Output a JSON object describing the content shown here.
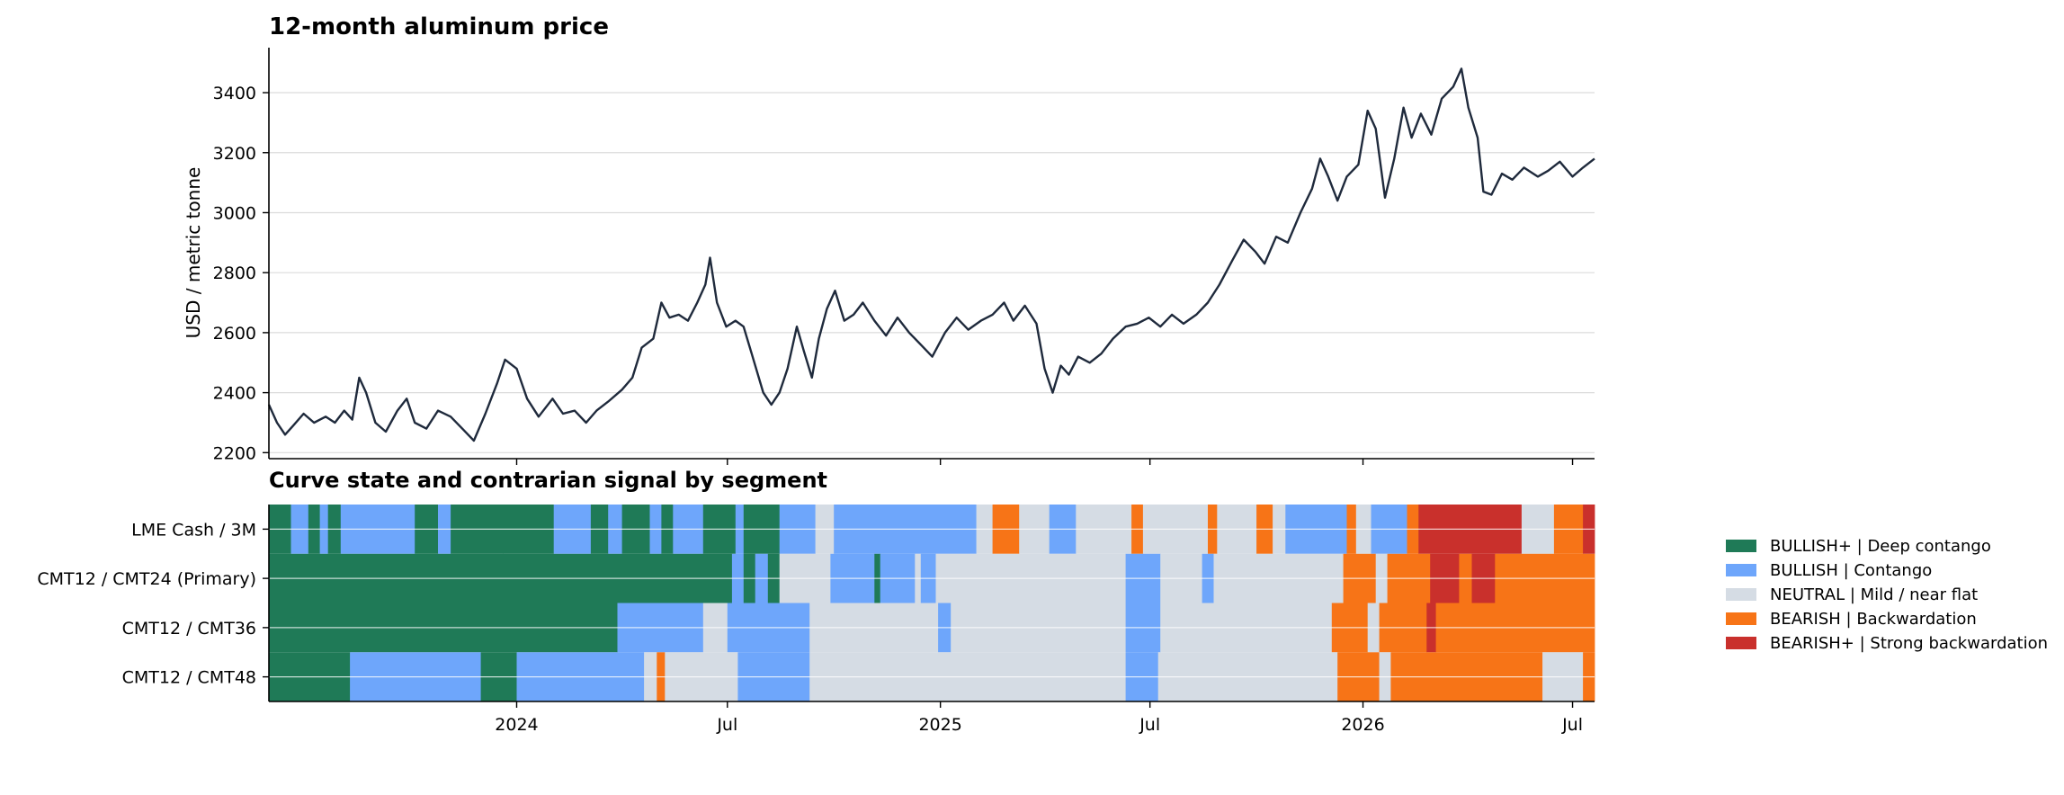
{
  "chart_data": [
    {
      "type": "line",
      "title": "12-month aluminum price",
      "xlabel": "",
      "ylabel": "USD / metric tonne",
      "ylim": [
        2180,
        3550
      ],
      "yticks": [
        2200,
        2400,
        2600,
        2800,
        3000,
        3200,
        3400
      ],
      "xrange": [
        "2023-06-01",
        "2026-07-20"
      ],
      "grid": "horizontal",
      "line_color": "#1f2a3c",
      "series": [
        {
          "points": [
            [
              "2023-06-01",
              2360
            ],
            [
              "2023-06-08",
              2300
            ],
            [
              "2023-06-15",
              2260
            ],
            [
              "2023-06-22",
              2290
            ],
            [
              "2023-07-01",
              2330
            ],
            [
              "2023-07-10",
              2300
            ],
            [
              "2023-07-20",
              2320
            ],
            [
              "2023-07-28",
              2300
            ],
            [
              "2023-08-05",
              2340
            ],
            [
              "2023-08-12",
              2310
            ],
            [
              "2023-08-18",
              2450
            ],
            [
              "2023-08-24",
              2400
            ],
            [
              "2023-09-01",
              2300
            ],
            [
              "2023-09-10",
              2270
            ],
            [
              "2023-09-20",
              2340
            ],
            [
              "2023-09-28",
              2380
            ],
            [
              "2023-10-05",
              2300
            ],
            [
              "2023-10-15",
              2280
            ],
            [
              "2023-10-25",
              2340
            ],
            [
              "2023-11-05",
              2320
            ],
            [
              "2023-11-15",
              2280
            ],
            [
              "2023-11-25",
              2240
            ],
            [
              "2023-12-05",
              2330
            ],
            [
              "2023-12-15",
              2430
            ],
            [
              "2023-12-22",
              2510
            ],
            [
              "2024-01-01",
              2480
            ],
            [
              "2024-01-10",
              2380
            ],
            [
              "2024-01-20",
              2320
            ],
            [
              "2024-02-01",
              2380
            ],
            [
              "2024-02-10",
              2330
            ],
            [
              "2024-02-20",
              2340
            ],
            [
              "2024-03-01",
              2300
            ],
            [
              "2024-03-10",
              2340
            ],
            [
              "2024-03-20",
              2370
            ],
            [
              "2024-04-01",
              2410
            ],
            [
              "2024-04-10",
              2450
            ],
            [
              "2024-04-18",
              2550
            ],
            [
              "2024-04-28",
              2580
            ],
            [
              "2024-05-05",
              2700
            ],
            [
              "2024-05-12",
              2650
            ],
            [
              "2024-05-20",
              2660
            ],
            [
              "2024-05-28",
              2640
            ],
            [
              "2024-06-05",
              2700
            ],
            [
              "2024-06-12",
              2760
            ],
            [
              "2024-06-16",
              2850
            ],
            [
              "2024-06-22",
              2700
            ],
            [
              "2024-06-30",
              2620
            ],
            [
              "2024-07-08",
              2640
            ],
            [
              "2024-07-15",
              2620
            ],
            [
              "2024-07-22",
              2530
            ],
            [
              "2024-08-01",
              2400
            ],
            [
              "2024-08-08",
              2360
            ],
            [
              "2024-08-15",
              2400
            ],
            [
              "2024-08-22",
              2480
            ],
            [
              "2024-08-30",
              2620
            ],
            [
              "2024-09-05",
              2540
            ],
            [
              "2024-09-12",
              2450
            ],
            [
              "2024-09-18",
              2580
            ],
            [
              "2024-09-25",
              2680
            ],
            [
              "2024-10-02",
              2740
            ],
            [
              "2024-10-10",
              2640
            ],
            [
              "2024-10-18",
              2660
            ],
            [
              "2024-10-26",
              2700
            ],
            [
              "2024-11-05",
              2640
            ],
            [
              "2024-11-15",
              2590
            ],
            [
              "2024-11-25",
              2650
            ],
            [
              "2024-12-05",
              2600
            ],
            [
              "2024-12-15",
              2560
            ],
            [
              "2024-12-25",
              2520
            ],
            [
              "2025-01-05",
              2600
            ],
            [
              "2025-01-15",
              2650
            ],
            [
              "2025-01-25",
              2610
            ],
            [
              "2025-02-05",
              2640
            ],
            [
              "2025-02-15",
              2660
            ],
            [
              "2025-02-25",
              2700
            ],
            [
              "2025-03-05",
              2640
            ],
            [
              "2025-03-15",
              2690
            ],
            [
              "2025-03-25",
              2630
            ],
            [
              "2025-04-01",
              2480
            ],
            [
              "2025-04-08",
              2400
            ],
            [
              "2025-04-15",
              2490
            ],
            [
              "2025-04-22",
              2460
            ],
            [
              "2025-04-30",
              2520
            ],
            [
              "2025-05-10",
              2500
            ],
            [
              "2025-05-20",
              2530
            ],
            [
              "2025-05-30",
              2580
            ],
            [
              "2025-06-10",
              2620
            ],
            [
              "2025-06-20",
              2630
            ],
            [
              "2025-06-30",
              2650
            ],
            [
              "2025-07-10",
              2620
            ],
            [
              "2025-07-20",
              2660
            ],
            [
              "2025-07-30",
              2630
            ],
            [
              "2025-08-10",
              2660
            ],
            [
              "2025-08-20",
              2700
            ],
            [
              "2025-08-30",
              2760
            ],
            [
              "2025-09-10",
              2840
            ],
            [
              "2025-09-20",
              2910
            ],
            [
              "2025-09-30",
              2870
            ],
            [
              "2025-10-08",
              2830
            ],
            [
              "2025-10-18",
              2920
            ],
            [
              "2025-10-28",
              2900
            ],
            [
              "2025-11-08",
              3000
            ],
            [
              "2025-11-18",
              3080
            ],
            [
              "2025-11-25",
              3180
            ],
            [
              "2025-12-02",
              3120
            ],
            [
              "2025-12-10",
              3040
            ],
            [
              "2025-12-18",
              3120
            ],
            [
              "2025-12-28",
              3160
            ],
            [
              "2026-01-05",
              3340
            ],
            [
              "2026-01-12",
              3280
            ],
            [
              "2026-01-20",
              3050
            ],
            [
              "2026-01-28",
              3180
            ],
            [
              "2026-02-05",
              3350
            ],
            [
              "2026-02-12",
              3250
            ],
            [
              "2026-02-20",
              3330
            ],
            [
              "2026-03-01",
              3260
            ],
            [
              "2026-03-10",
              3380
            ],
            [
              "2026-03-20",
              3420
            ],
            [
              "2026-03-27",
              3480
            ],
            [
              "2026-04-02",
              3350
            ],
            [
              "2026-04-10",
              3250
            ],
            [
              "2026-04-15",
              3070
            ],
            [
              "2026-04-22",
              3060
            ],
            [
              "2026-05-01",
              3130
            ],
            [
              "2026-05-10",
              3110
            ],
            [
              "2026-05-20",
              3150
            ],
            [
              "2026-06-01",
              3120
            ],
            [
              "2026-06-10",
              3140
            ],
            [
              "2026-06-20",
              3170
            ],
            [
              "2026-07-01",
              3120
            ],
            [
              "2026-07-10",
              3150
            ],
            [
              "2026-07-20",
              3180
            ]
          ]
        }
      ]
    },
    {
      "type": "heatmap",
      "title": "Curve state and contrarian signal by segment",
      "rows": [
        "LME Cash / 3M",
        "CMT12 / CMT24 (Primary)",
        "CMT12 / CMT36",
        "CMT12 / CMT48"
      ],
      "xticks": [
        {
          "date": "2024-01-01",
          "label": "2024"
        },
        {
          "date": "2024-07-01",
          "label": "Jul"
        },
        {
          "date": "2025-01-01",
          "label": "2025"
        },
        {
          "date": "2025-07-01",
          "label": "Jul"
        },
        {
          "date": "2026-01-01",
          "label": "2026"
        },
        {
          "date": "2026-07-01",
          "label": "Jul"
        }
      ],
      "legend_position": "right",
      "states": [
        {
          "key": "bullish_plus",
          "label": "BULLISH+ | Deep contango",
          "color": "#1f7a57"
        },
        {
          "key": "bullish",
          "label": "BULLISH | Contango",
          "color": "#6ea6fb"
        },
        {
          "key": "neutral",
          "label": "NEUTRAL | Mild / near flat",
          "color": "#d5dce4"
        },
        {
          "key": "bearish",
          "label": "BEARISH | Backwardation",
          "color": "#f77417"
        },
        {
          "key": "bearish_plus",
          "label": "BEARISH+ | Strong backwardation",
          "color": "#c9302c"
        }
      ],
      "segments": [
        [
          [
            "2023-06-01",
            "bullish_plus"
          ],
          [
            "2023-06-20",
            "bullish"
          ],
          [
            "2023-07-05",
            "bullish_plus"
          ],
          [
            "2023-07-15",
            "bullish"
          ],
          [
            "2023-07-22",
            "bullish_plus"
          ],
          [
            "2023-08-02",
            "bullish"
          ],
          [
            "2023-10-05",
            "bullish_plus"
          ],
          [
            "2023-10-25",
            "bullish"
          ],
          [
            "2023-11-05",
            "bullish_plus"
          ],
          [
            "2023-12-20",
            "bullish_plus"
          ],
          [
            "2024-02-02",
            "bullish"
          ],
          [
            "2024-03-05",
            "bullish_plus"
          ],
          [
            "2024-03-20",
            "bullish"
          ],
          [
            "2024-04-01",
            "bullish_plus"
          ],
          [
            "2024-04-25",
            "bullish"
          ],
          [
            "2024-05-05",
            "bullish_plus"
          ],
          [
            "2024-05-15",
            "bullish"
          ],
          [
            "2024-06-10",
            "bullish_plus"
          ],
          [
            "2024-07-08",
            "bullish"
          ],
          [
            "2024-07-15",
            "bullish_plus"
          ],
          [
            "2024-08-15",
            "bullish"
          ],
          [
            "2024-09-15",
            "neutral"
          ],
          [
            "2024-10-01",
            "bullish"
          ],
          [
            "2025-02-01",
            "neutral"
          ],
          [
            "2025-02-15",
            "bearish"
          ],
          [
            "2025-03-10",
            "neutral"
          ],
          [
            "2025-04-05",
            "bullish"
          ],
          [
            "2025-04-28",
            "neutral"
          ],
          [
            "2025-06-15",
            "bearish"
          ],
          [
            "2025-06-25",
            "neutral"
          ],
          [
            "2025-08-20",
            "bearish"
          ],
          [
            "2025-08-28",
            "neutral"
          ],
          [
            "2025-10-01",
            "bearish"
          ],
          [
            "2025-10-15",
            "neutral"
          ],
          [
            "2025-10-26",
            "bullish"
          ],
          [
            "2025-12-18",
            "bearish"
          ],
          [
            "2025-12-26",
            "neutral"
          ],
          [
            "2026-01-08",
            "bullish"
          ],
          [
            "2026-02-08",
            "bearish"
          ],
          [
            "2026-02-18",
            "bearish_plus"
          ],
          [
            "2026-05-18",
            "neutral"
          ],
          [
            "2026-06-15",
            "bearish"
          ],
          [
            "2026-07-10",
            "bearish_plus"
          ],
          [
            "2026-07-20",
            "end"
          ]
        ],
        [
          [
            "2023-06-01",
            "bullish_plus"
          ],
          [
            "2024-07-05",
            "bullish"
          ],
          [
            "2024-07-15",
            "bullish_plus"
          ],
          [
            "2024-07-25",
            "bullish"
          ],
          [
            "2024-08-05",
            "bullish_plus"
          ],
          [
            "2024-08-15",
            "neutral"
          ],
          [
            "2024-09-28",
            "bullish"
          ],
          [
            "2024-11-05",
            "bullish_plus"
          ],
          [
            "2024-11-10",
            "bullish"
          ],
          [
            "2024-12-10",
            "neutral"
          ],
          [
            "2024-12-15",
            "bullish"
          ],
          [
            "2024-12-28",
            "neutral"
          ],
          [
            "2025-06-10",
            "bullish"
          ],
          [
            "2025-07-10",
            "neutral"
          ],
          [
            "2025-08-15",
            "bullish"
          ],
          [
            "2025-08-25",
            "neutral"
          ],
          [
            "2025-12-15",
            "bearish"
          ],
          [
            "2026-01-12",
            "neutral"
          ],
          [
            "2026-01-22",
            "bearish"
          ],
          [
            "2026-02-28",
            "bearish_plus"
          ],
          [
            "2026-03-25",
            "bearish"
          ],
          [
            "2026-04-05",
            "bearish_plus"
          ],
          [
            "2026-04-25",
            "bearish"
          ],
          [
            "2026-07-20",
            "end"
          ]
        ],
        [
          [
            "2023-06-01",
            "bullish_plus"
          ],
          [
            "2024-03-28",
            "bullish"
          ],
          [
            "2024-06-10",
            "neutral"
          ],
          [
            "2024-07-01",
            "bullish"
          ],
          [
            "2024-09-10",
            "neutral"
          ],
          [
            "2024-12-30",
            "bullish"
          ],
          [
            "2025-01-10",
            "neutral"
          ],
          [
            "2025-06-10",
            "bullish"
          ],
          [
            "2025-07-10",
            "neutral"
          ],
          [
            "2025-12-05",
            "bearish"
          ],
          [
            "2026-01-05",
            "neutral"
          ],
          [
            "2026-01-15",
            "bearish"
          ],
          [
            "2026-02-25",
            "bearish_plus"
          ],
          [
            "2026-03-05",
            "bearish"
          ],
          [
            "2026-07-20",
            "end"
          ]
        ],
        [
          [
            "2023-06-01",
            "bullish_plus"
          ],
          [
            "2023-08-10",
            "bullish"
          ],
          [
            "2023-12-01",
            "bullish_plus"
          ],
          [
            "2024-01-01",
            "bullish"
          ],
          [
            "2024-04-20",
            "neutral"
          ],
          [
            "2024-05-01",
            "bearish"
          ],
          [
            "2024-05-08",
            "neutral"
          ],
          [
            "2024-07-10",
            "bullish"
          ],
          [
            "2024-09-10",
            "neutral"
          ],
          [
            "2025-06-10",
            "bullish"
          ],
          [
            "2025-07-08",
            "neutral"
          ],
          [
            "2025-12-10",
            "bearish"
          ],
          [
            "2026-01-15",
            "neutral"
          ],
          [
            "2026-01-25",
            "bearish"
          ],
          [
            "2026-06-05",
            "neutral"
          ],
          [
            "2026-07-10",
            "bearish"
          ],
          [
            "2026-07-20",
            "end"
          ]
        ]
      ]
    }
  ]
}
